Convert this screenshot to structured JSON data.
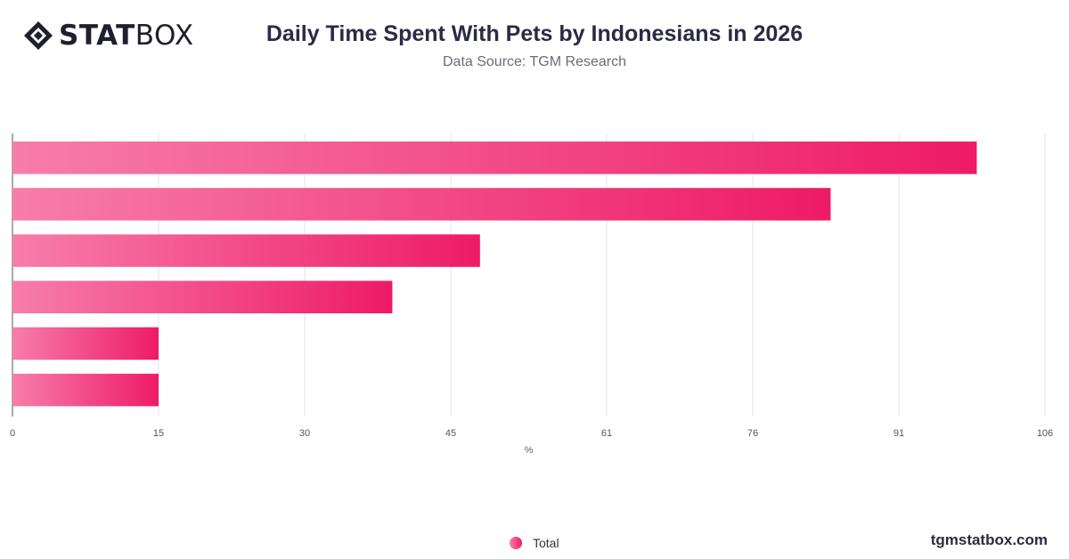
{
  "brand": {
    "logo_bold": "STAT",
    "logo_light": "BOX",
    "watermark": "tgmstatbox.com"
  },
  "header": {
    "title": "Daily Time Spent With Pets by Indonesians in 2026",
    "subtitle": "Data Source: TGM Research"
  },
  "colors": {
    "bar_start": "#f77da9",
    "bar_end": "#ee1b66",
    "grid": "#e3e3e3",
    "axis": "#555555"
  },
  "chart_data": {
    "type": "bar",
    "orientation": "horizontal",
    "categories": [
      "",
      "",
      "",
      "",
      "",
      ""
    ],
    "series": [
      {
        "name": "Total",
        "values": [
          99,
          84,
          48,
          39,
          15,
          15
        ]
      }
    ],
    "xlabel": "%",
    "ylabel": "",
    "xlim": [
      0,
      106
    ],
    "x_ticks": [
      "0",
      "15",
      "30",
      "45",
      "61",
      "76",
      "91",
      "106"
    ],
    "grid": true,
    "legend": "bottom-center"
  }
}
